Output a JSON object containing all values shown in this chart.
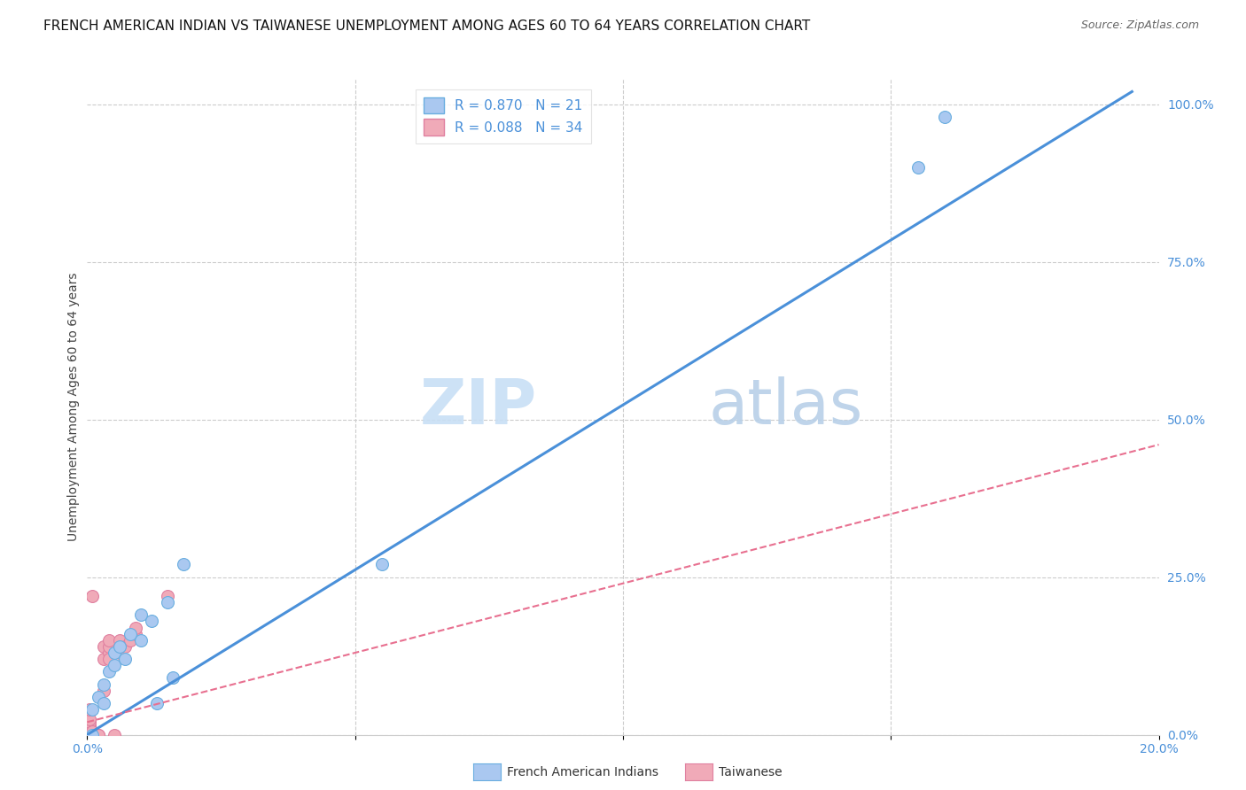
{
  "title": "FRENCH AMERICAN INDIAN VS TAIWANESE UNEMPLOYMENT AMONG AGES 60 TO 64 YEARS CORRELATION CHART",
  "source": "Source: ZipAtlas.com",
  "ylabel": "Unemployment Among Ages 60 to 64 years",
  "watermark_zip": "ZIP",
  "watermark_atlas": "atlas",
  "xmin": 0.0,
  "xmax": 0.2,
  "ymin": 0.0,
  "ymax": 1.04,
  "xticks": [
    0.0,
    0.05,
    0.1,
    0.15,
    0.2
  ],
  "xtick_labels": [
    "0.0%",
    "",
    "",
    "",
    "20.0%"
  ],
  "yticks_right": [
    0.0,
    0.25,
    0.5,
    0.75,
    1.0
  ],
  "ytick_labels_right": [
    "0.0%",
    "25.0%",
    "50.0%",
    "75.0%",
    "100.0%"
  ],
  "legend_r1": "R = 0.870   N = 21",
  "legend_r2": "R = 0.088   N = 34",
  "blue_scatter_x": [
    0.001,
    0.001,
    0.002,
    0.003,
    0.003,
    0.004,
    0.005,
    0.005,
    0.006,
    0.007,
    0.008,
    0.01,
    0.01,
    0.012,
    0.013,
    0.015,
    0.016,
    0.018,
    0.055,
    0.155,
    0.16
  ],
  "blue_scatter_y": [
    0.0,
    0.04,
    0.06,
    0.05,
    0.08,
    0.1,
    0.11,
    0.13,
    0.14,
    0.12,
    0.16,
    0.15,
    0.19,
    0.18,
    0.05,
    0.21,
    0.09,
    0.27,
    0.27,
    0.9,
    0.98
  ],
  "pink_scatter_x": [
    0.0005,
    0.0005,
    0.0005,
    0.0005,
    0.0005,
    0.0005,
    0.0005,
    0.0005,
    0.0005,
    0.0005,
    0.0005,
    0.0005,
    0.0005,
    0.0005,
    0.001,
    0.001,
    0.001,
    0.002,
    0.002,
    0.003,
    0.003,
    0.003,
    0.004,
    0.004,
    0.004,
    0.004,
    0.005,
    0.006,
    0.006,
    0.007,
    0.008,
    0.009,
    0.009,
    0.015
  ],
  "pink_scatter_y": [
    0.0,
    0.0,
    0.0,
    0.0,
    0.0,
    0.0,
    0.0,
    0.005,
    0.01,
    0.01,
    0.015,
    0.02,
    0.025,
    0.04,
    0.0,
    0.005,
    0.22,
    0.0,
    0.0,
    0.07,
    0.12,
    0.14,
    0.13,
    0.12,
    0.14,
    0.15,
    0.0,
    0.13,
    0.15,
    0.14,
    0.15,
    0.16,
    0.17,
    0.22
  ],
  "blue_line_x": [
    0.0,
    0.195
  ],
  "blue_line_y": [
    0.0,
    1.02
  ],
  "pink_line_x": [
    0.0,
    0.2
  ],
  "pink_line_y": [
    0.02,
    0.46
  ],
  "blue_line_color": "#4a90d9",
  "pink_line_color": "#e87090",
  "scatter_blue_fill": "#aac8f0",
  "scatter_pink_fill": "#f0aab8",
  "scatter_blue_edge": "#6aaee0",
  "scatter_pink_edge": "#e080a0",
  "marker_size": 100,
  "grid_color": "#cccccc",
  "background_color": "#ffffff",
  "title_fontsize": 11,
  "ylabel_fontsize": 10,
  "tick_fontsize": 10,
  "legend_fontsize": 11,
  "watermark_fontsize_zip": 52,
  "watermark_fontsize_atlas": 52,
  "watermark_color_zip": "#c8dff5",
  "watermark_color_atlas": "#b8d0e8",
  "bottom_legend_blue": "French American Indians",
  "bottom_legend_pink": "Taiwanese"
}
